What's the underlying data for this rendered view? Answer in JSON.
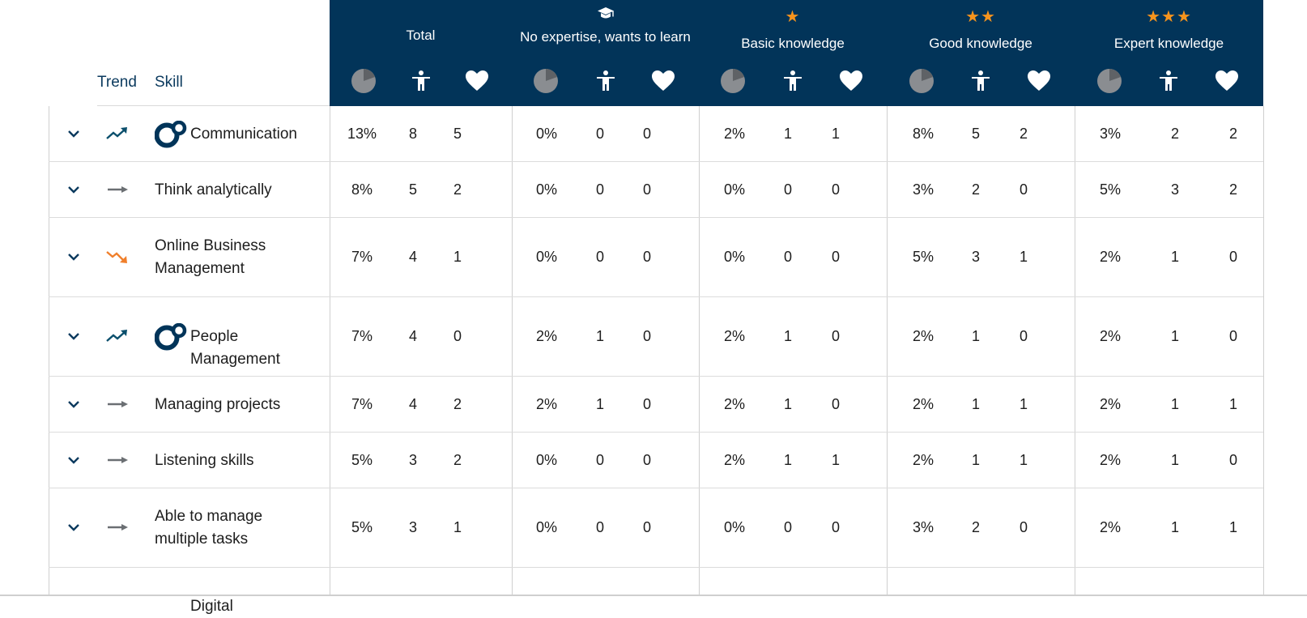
{
  "header": {
    "trend_label": "Trend",
    "skill_label": "Skill",
    "groups": [
      {
        "title": "Total",
        "icon": "none",
        "stars": ""
      },
      {
        "title": "No expertise, wants to learn",
        "icon": "graduation-cap-icon",
        "stars": ""
      },
      {
        "title": "Basic knowledge",
        "icon": "star-icon",
        "stars": "★"
      },
      {
        "title": "Good knowledge",
        "icon": "star-icon",
        "stars": "★★"
      },
      {
        "title": "Expert knowledge",
        "icon": "star-icon",
        "stars": "★★★"
      }
    ],
    "sub_columns": [
      "pie-chart-icon",
      "person-icon",
      "heart-icon"
    ]
  },
  "colors": {
    "header_bg": "#023459",
    "star": "#f7941d",
    "trend_up": "#0b4f6c",
    "trend_down": "#f07f2b",
    "trend_flat": "#6b6f73",
    "logo": "#003459"
  },
  "rows": [
    {
      "skill": "Communication",
      "trend": "up",
      "logo": true,
      "values": [
        [
          "13%",
          "8",
          "5"
        ],
        [
          "0%",
          "0",
          "0"
        ],
        [
          "2%",
          "1",
          "1"
        ],
        [
          "8%",
          "5",
          "2"
        ],
        [
          "3%",
          "2",
          "2"
        ]
      ]
    },
    {
      "skill": "Think analytically",
      "trend": "flat",
      "logo": false,
      "values": [
        [
          "8%",
          "5",
          "2"
        ],
        [
          "0%",
          "0",
          "0"
        ],
        [
          "0%",
          "0",
          "0"
        ],
        [
          "3%",
          "2",
          "0"
        ],
        [
          "5%",
          "3",
          "2"
        ]
      ]
    },
    {
      "skill": "Online Business Management",
      "trend": "down",
      "logo": false,
      "values": [
        [
          "7%",
          "4",
          "1"
        ],
        [
          "0%",
          "0",
          "0"
        ],
        [
          "0%",
          "0",
          "0"
        ],
        [
          "5%",
          "3",
          "1"
        ],
        [
          "2%",
          "1",
          "0"
        ]
      ]
    },
    {
      "skill": "People Management",
      "trend": "up",
      "logo": true,
      "values": [
        [
          "7%",
          "4",
          "0"
        ],
        [
          "2%",
          "1",
          "0"
        ],
        [
          "2%",
          "1",
          "0"
        ],
        [
          "2%",
          "1",
          "0"
        ],
        [
          "2%",
          "1",
          "0"
        ]
      ]
    },
    {
      "skill": "Managing projects",
      "trend": "flat",
      "logo": false,
      "values": [
        [
          "7%",
          "4",
          "2"
        ],
        [
          "2%",
          "1",
          "0"
        ],
        [
          "2%",
          "1",
          "0"
        ],
        [
          "2%",
          "1",
          "1"
        ],
        [
          "2%",
          "1",
          "1"
        ]
      ]
    },
    {
      "skill": "Listening skills",
      "trend": "flat",
      "logo": false,
      "values": [
        [
          "5%",
          "3",
          "2"
        ],
        [
          "0%",
          "0",
          "0"
        ],
        [
          "2%",
          "1",
          "1"
        ],
        [
          "2%",
          "1",
          "1"
        ],
        [
          "2%",
          "1",
          "0"
        ]
      ]
    },
    {
      "skill": "Able to manage multiple tasks",
      "trend": "flat",
      "logo": false,
      "values": [
        [
          "5%",
          "3",
          "1"
        ],
        [
          "0%",
          "0",
          "0"
        ],
        [
          "0%",
          "0",
          "0"
        ],
        [
          "3%",
          "2",
          "0"
        ],
        [
          "2%",
          "1",
          "1"
        ]
      ]
    },
    {
      "skill": "Digital",
      "trend": "",
      "logo": false,
      "partial": true,
      "values": []
    }
  ]
}
